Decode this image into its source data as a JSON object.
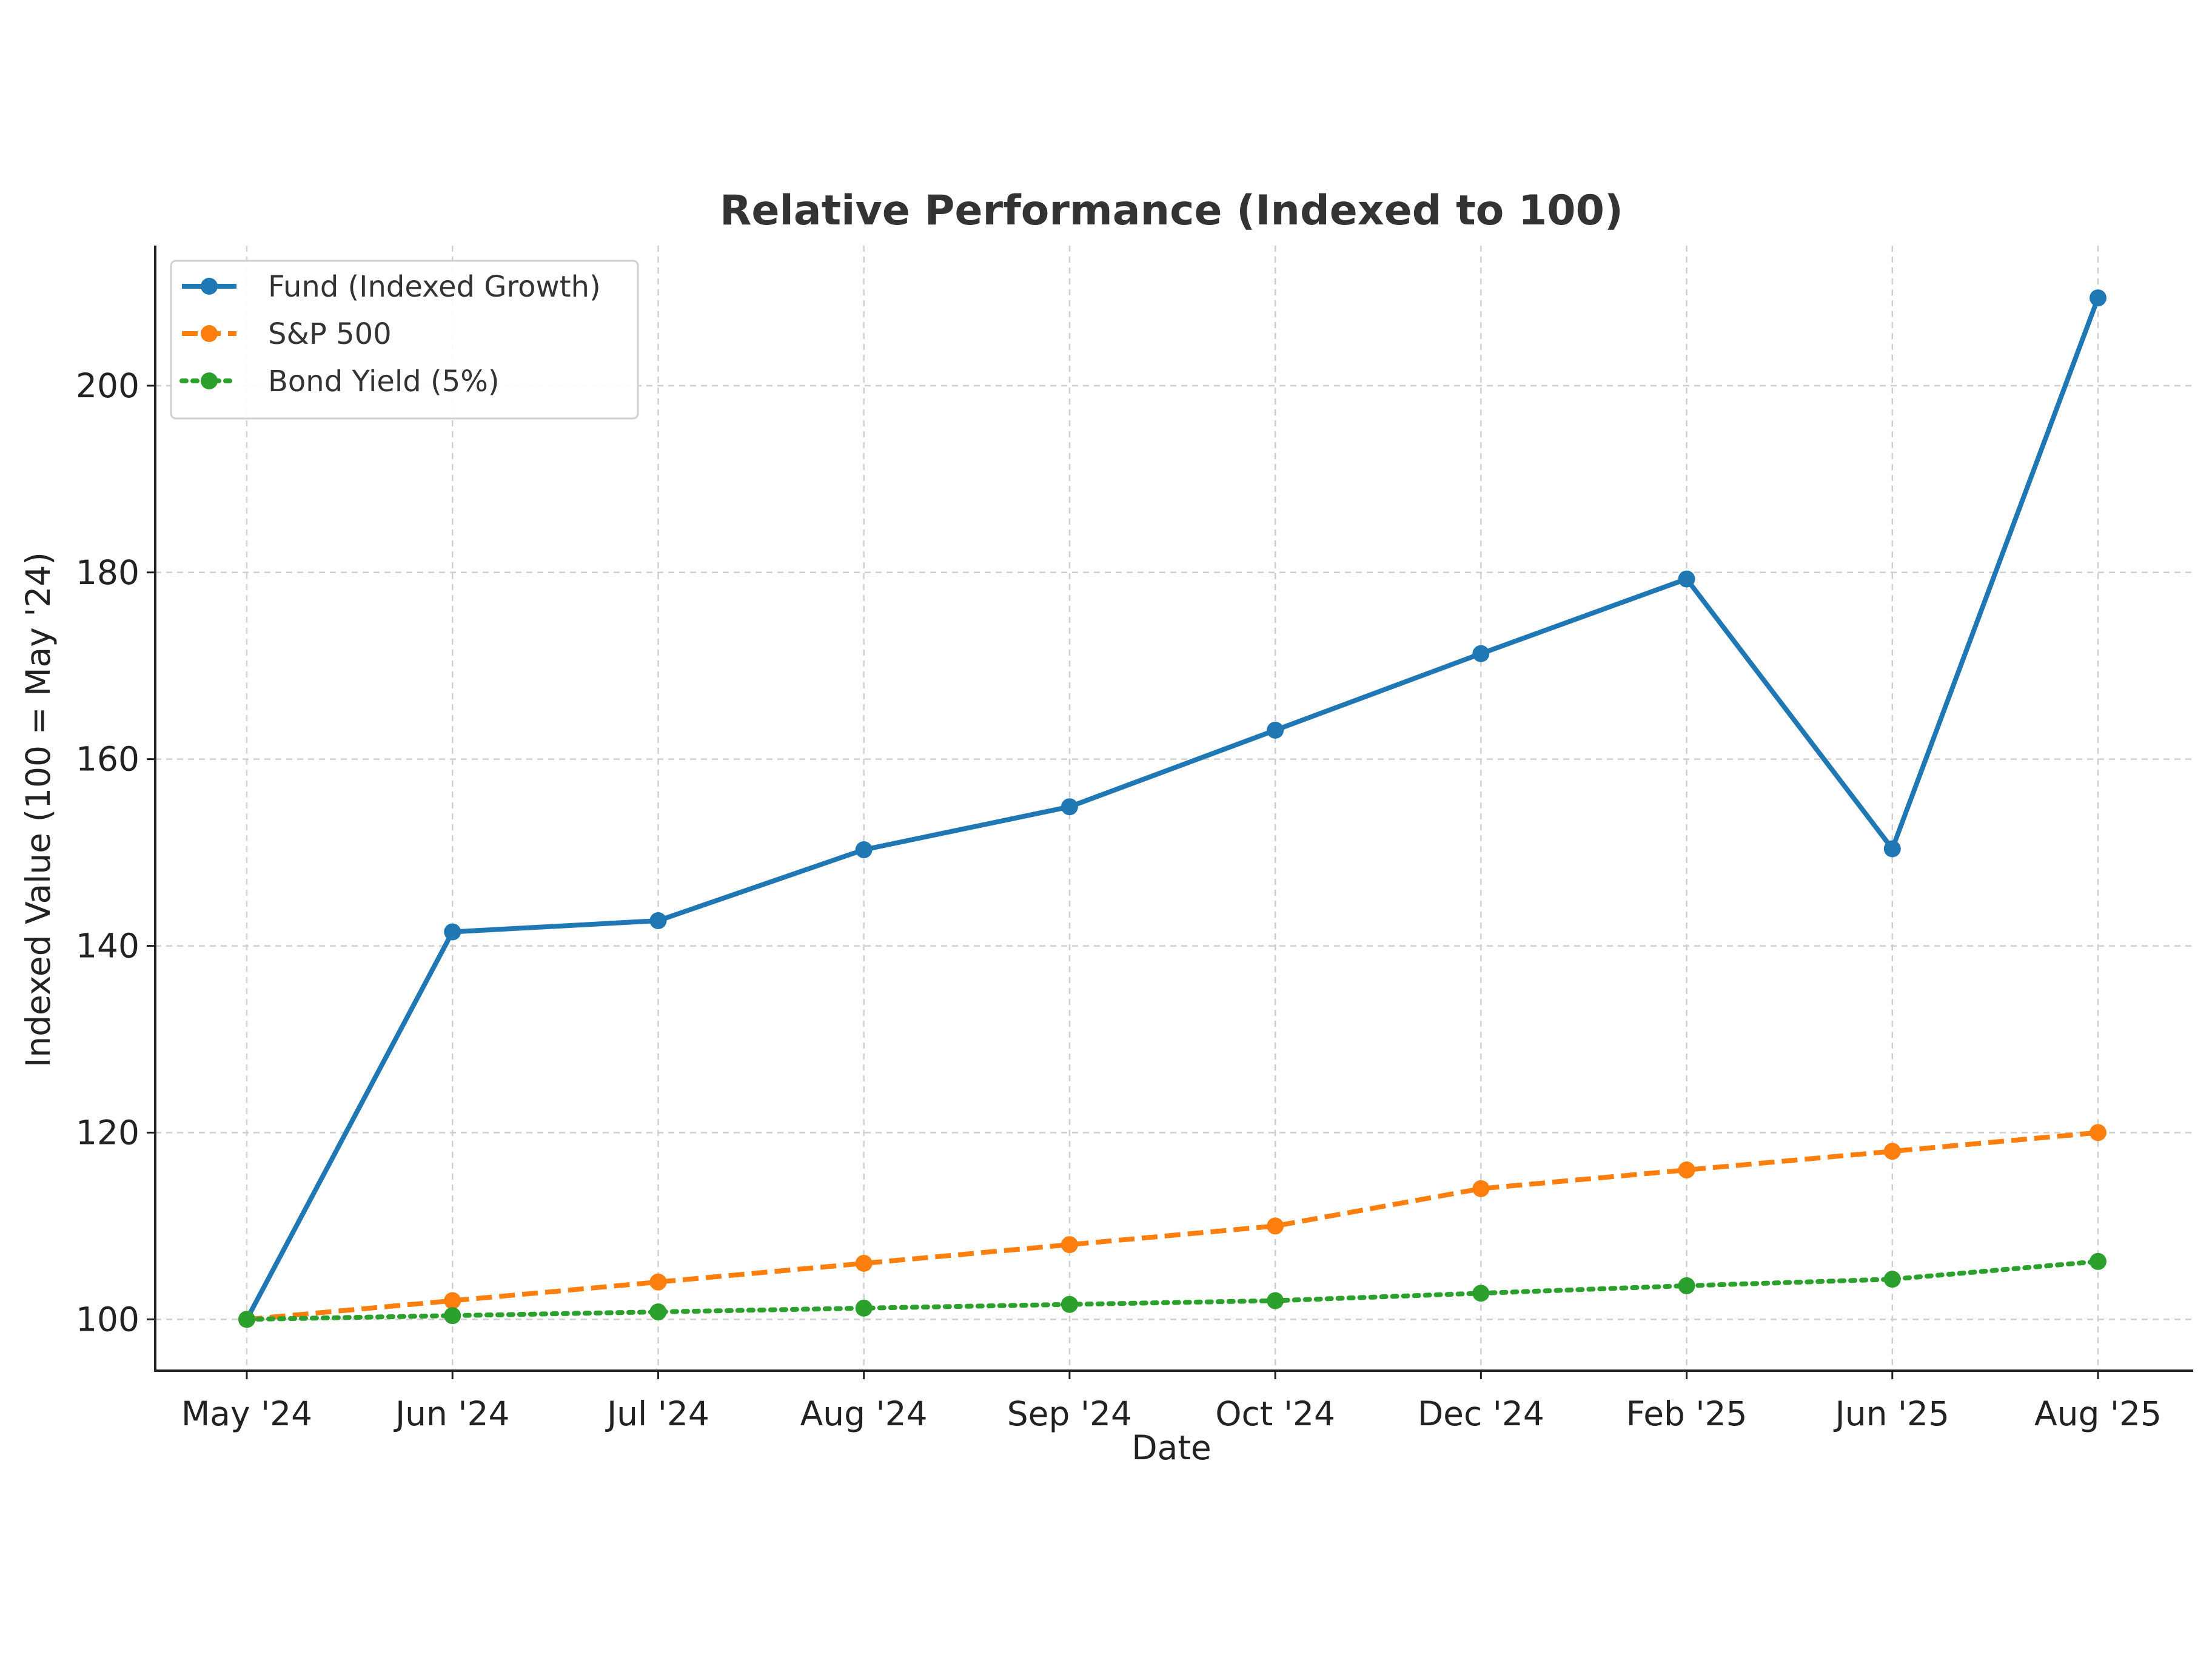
{
  "chart_data": {
    "type": "line",
    "title": "Relative Performance (Indexed to 100)",
    "xlabel": "Date",
    "ylabel": "Indexed Value (100 = May '24)",
    "categories": [
      "May '24",
      "Jun '24",
      "Jul '24",
      "Aug '24",
      "Sep '24",
      "Oct '24",
      "Dec '24",
      "Feb '25",
      "Jun '25",
      "Aug '25"
    ],
    "ylim": [
      94.5,
      215
    ],
    "yticks": [
      100,
      120,
      140,
      160,
      180,
      200
    ],
    "grid": true,
    "legend_position": "top-left",
    "series": [
      {
        "name": "Fund (Indexed Growth)",
        "color": "#1f77b4",
        "style": "solid",
        "values": [
          100,
          141.5,
          142.7,
          150.3,
          154.9,
          163.1,
          171.3,
          179.3,
          150.4,
          209.4
        ]
      },
      {
        "name": "S&P 500",
        "color": "#ff7f0e",
        "style": "dashed",
        "values": [
          100,
          102,
          104,
          106,
          108,
          110,
          114,
          116,
          118,
          120
        ]
      },
      {
        "name": "Bond Yield (5%)",
        "color": "#2ca02c",
        "style": "dotted",
        "values": [
          100,
          100.4,
          100.8,
          101.2,
          101.6,
          102.0,
          102.8,
          103.6,
          104.3,
          106.2
        ]
      }
    ]
  }
}
